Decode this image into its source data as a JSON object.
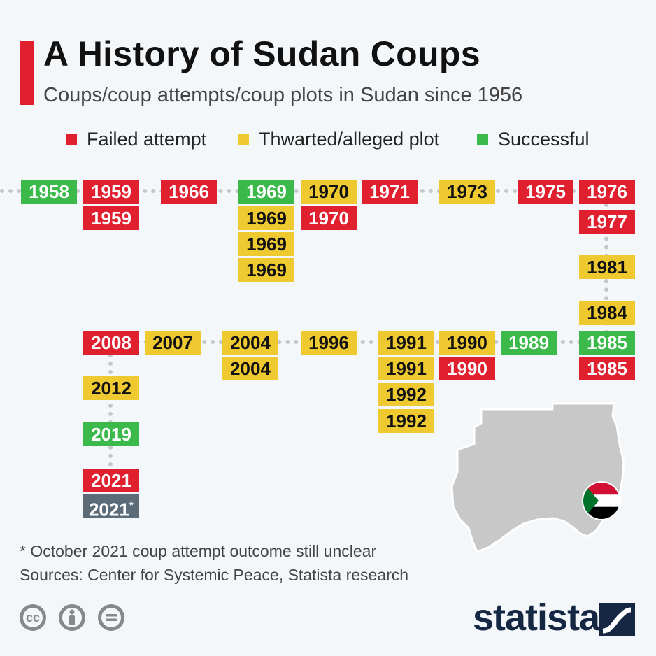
{
  "header": {
    "title": "A History of Sudan Coups",
    "subtitle": "Coups/coup attempts/coup plots in Sudan since 1956"
  },
  "legend": {
    "failed": "Failed attempt",
    "plot": "Thwarted/alleged plot",
    "success": "Successful"
  },
  "colors": {
    "failed": "#e01f2f",
    "plot": "#eec930",
    "success": "#3bb94a",
    "unclear": "#5b6b78",
    "brand": "#152743"
  },
  "timeline": {
    "boxes": [
      {
        "id": "b1958",
        "year": "1958",
        "status": "success"
      },
      {
        "id": "b1959a",
        "year": "1959",
        "status": "failed"
      },
      {
        "id": "b1959b",
        "year": "1959",
        "status": "failed"
      },
      {
        "id": "b1966",
        "year": "1966",
        "status": "failed"
      },
      {
        "id": "b1969a",
        "year": "1969",
        "status": "success"
      },
      {
        "id": "b1969b",
        "year": "1969",
        "status": "plot"
      },
      {
        "id": "b1969c",
        "year": "1969",
        "status": "plot"
      },
      {
        "id": "b1969d",
        "year": "1969",
        "status": "plot"
      },
      {
        "id": "b1970a",
        "year": "1970",
        "status": "plot"
      },
      {
        "id": "b1970b",
        "year": "1970",
        "status": "failed"
      },
      {
        "id": "b1971",
        "year": "1971",
        "status": "failed"
      },
      {
        "id": "b1973",
        "year": "1973",
        "status": "plot"
      },
      {
        "id": "b1975",
        "year": "1975",
        "status": "failed"
      },
      {
        "id": "b1976",
        "year": "1976",
        "status": "failed"
      },
      {
        "id": "b1977",
        "year": "1977",
        "status": "failed"
      },
      {
        "id": "b1981",
        "year": "1981",
        "status": "plot"
      },
      {
        "id": "b1984",
        "year": "1984",
        "status": "plot"
      },
      {
        "id": "b1985a",
        "year": "1985",
        "status": "success"
      },
      {
        "id": "b1985b",
        "year": "1985",
        "status": "failed"
      },
      {
        "id": "b1989",
        "year": "1989",
        "status": "success"
      },
      {
        "id": "b1990a",
        "year": "1990",
        "status": "plot"
      },
      {
        "id": "b1990b",
        "year": "1990",
        "status": "failed"
      },
      {
        "id": "b1991a",
        "year": "1991",
        "status": "plot"
      },
      {
        "id": "b1991b",
        "year": "1991",
        "status": "plot"
      },
      {
        "id": "b1992a",
        "year": "1992",
        "status": "plot"
      },
      {
        "id": "b1992b",
        "year": "1992",
        "status": "plot"
      },
      {
        "id": "b1996",
        "year": "1996",
        "status": "plot"
      },
      {
        "id": "b2004a",
        "year": "2004",
        "status": "plot"
      },
      {
        "id": "b2004b",
        "year": "2004",
        "status": "plot"
      },
      {
        "id": "b2007",
        "year": "2007",
        "status": "plot"
      },
      {
        "id": "b2008",
        "year": "2008",
        "status": "failed"
      },
      {
        "id": "b2012",
        "year": "2012",
        "status": "plot"
      },
      {
        "id": "b2019",
        "year": "2019",
        "status": "success"
      },
      {
        "id": "b2021a",
        "year": "2021",
        "status": "failed"
      },
      {
        "id": "b2021b",
        "year": "2021",
        "status": "unclear",
        "mark": "*"
      }
    ]
  },
  "footer": {
    "footnote": "* October 2021 coup attempt outcome still unclear",
    "sources": "Sources: Center for Systemic Peace, Statista research",
    "license_icons": [
      "cc-icon",
      "attribution-icon",
      "no-derivatives-icon"
    ],
    "brand": "statista"
  }
}
